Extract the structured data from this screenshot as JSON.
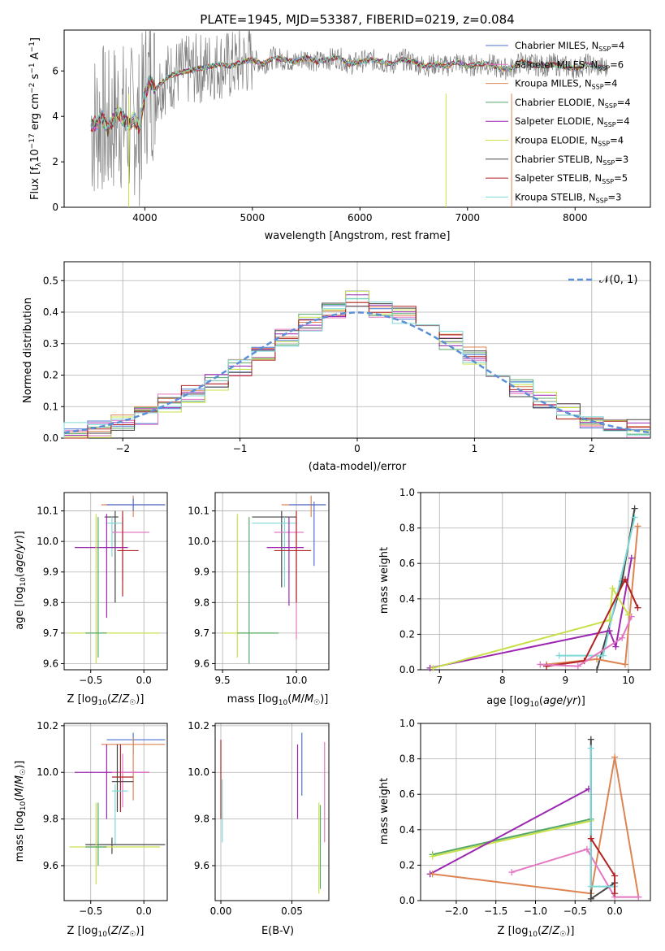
{
  "figure_title": "PLATE=1945, MJD=53387, FIBERID=0219, z=0.084",
  "colors": {
    "chabrier_miles": "#4c72d0",
    "salpeter_miles": "#e377c2",
    "kroupa_miles": "#dd8452",
    "chabrier_elodie": "#55a868",
    "salpeter_elodie": "#9c27b0",
    "kroupa_elodie": "#c8e04a",
    "chabrier_stelib": "#444444",
    "salpeter_stelib": "#b22222",
    "kroupa_stelib": "#7fd8d8",
    "data": "#7f7f7f",
    "gaussian": "#5b8fd8"
  },
  "chart_data": [
    {
      "id": "spectrum",
      "type": "line",
      "xlabel": "wavelength [Angstrom, rest frame]",
      "ylabel": "Flux [f_λ10^-17 erg cm^-2 s^-1 A^-1]",
      "xlim": [
        3250,
        8700
      ],
      "ylim": [
        0,
        7.8
      ],
      "xticks": [
        "4000",
        "5000",
        "6000",
        "7000",
        "8000"
      ],
      "yticks": [
        "0",
        "2",
        "4",
        "6"
      ],
      "grid": false,
      "legend_position": "right",
      "legend": [
        {
          "label": "Chabrier MILES, N",
          "sub": "SSP",
          "suffix": "=4",
          "color": "chabrier_miles"
        },
        {
          "label": "Salpeter MILES, N",
          "sub": "SSP",
          "suffix": "=6",
          "color": "salpeter_miles"
        },
        {
          "label": "Kroupa MILES, N",
          "sub": "SSP",
          "suffix": "=4",
          "color": "kroupa_miles"
        },
        {
          "label": "Chabrier ELODIE, N",
          "sub": "SSP",
          "suffix": "=4",
          "color": "chabrier_elodie"
        },
        {
          "label": "Salpeter ELODIE, N",
          "sub": "SSP",
          "suffix": "=4",
          "color": "salpeter_elodie"
        },
        {
          "label": "Kroupa ELODIE, N",
          "sub": "SSP",
          "suffix": "=4",
          "color": "kroupa_elodie"
        },
        {
          "label": "Chabrier STELIB, N",
          "sub": "SSP",
          "suffix": "=3",
          "color": "chabrier_stelib"
        },
        {
          "label": "Salpeter STELIB, N",
          "sub": "SSP",
          "suffix": "=5",
          "color": "salpeter_stelib"
        },
        {
          "label": "Kroupa STELIB, N",
          "sub": "SSP",
          "suffix": "=3",
          "color": "kroupa_stelib"
        }
      ],
      "data_x": [
        3500,
        3550,
        3600,
        3650,
        3700,
        3750,
        3800,
        3850,
        3900,
        3950,
        4000,
        4050,
        4100,
        4200,
        4300,
        4400,
        4500,
        4600,
        4700,
        4800,
        4900,
        5000,
        5100,
        5200,
        5300,
        5400,
        5500,
        5600,
        5700,
        5800,
        5900,
        6000,
        6100,
        6200,
        6300,
        6400,
        6500,
        6600,
        6700,
        6800,
        6900,
        7000,
        7100,
        7200,
        7300,
        7400,
        7500,
        7600,
        7700,
        7800,
        7900,
        8000,
        8100,
        8200,
        8300
      ],
      "model_y": [
        3.6,
        3.7,
        4.0,
        3.4,
        3.8,
        4.2,
        3.9,
        3.6,
        3.9,
        3.5,
        5.0,
        5.6,
        5.2,
        5.7,
        5.9,
        6.0,
        6.1,
        6.2,
        6.3,
        6.2,
        6.4,
        6.5,
        6.3,
        6.6,
        6.5,
        6.4,
        6.6,
        6.4,
        6.5,
        6.6,
        6.3,
        6.4,
        6.5,
        6.4,
        6.3,
        6.5,
        6.4,
        6.2,
        6.3,
        6.2,
        6.4,
        6.2,
        6.3,
        6.3,
        6.1,
        6.1,
        6.4,
        6.3,
        6.2,
        6.3,
        6.2,
        6.1,
        6.3,
        6.2,
        6.1
      ]
    },
    {
      "id": "residuals",
      "type": "line",
      "xlabel": "(data-model)/error",
      "ylabel": "Normed distribution",
      "xlim": [
        -2.5,
        2.5
      ],
      "ylim": [
        0,
        0.56
      ],
      "xticks": [
        "−2",
        "−1",
        "0",
        "1",
        "2"
      ],
      "yticks": [
        "0.0",
        "0.1",
        "0.2",
        "0.3",
        "0.4",
        "0.5"
      ],
      "grid": true,
      "legend_position": "top-right",
      "legend": [
        {
          "label": "𝒩(0, 1)",
          "color": "gaussian",
          "style": "dashed"
        }
      ],
      "bin_edges": [
        -2.5,
        -2.3,
        -2.1,
        -1.9,
        -1.7,
        -1.5,
        -1.3,
        -1.1,
        -0.9,
        -0.7,
        -0.5,
        -0.3,
        -0.1,
        0.1,
        0.3,
        0.5,
        0.7,
        0.9,
        1.1,
        1.3,
        1.5,
        1.7,
        1.9,
        2.1,
        2.3,
        2.5
      ],
      "hist_counts": [
        0.02,
        0.03,
        0.05,
        0.07,
        0.11,
        0.14,
        0.18,
        0.22,
        0.27,
        0.32,
        0.37,
        0.4,
        0.44,
        0.41,
        0.39,
        0.36,
        0.31,
        0.26,
        0.21,
        0.16,
        0.12,
        0.08,
        0.06,
        0.04,
        0.03
      ]
    },
    {
      "id": "age_vs_Z",
      "type": "scatter",
      "xlabel": "Z [log10(Z/Z☉)]",
      "ylabel": "age [log10(age/yr)]",
      "xlim": [
        -0.75,
        0.22
      ],
      "ylim": [
        9.58,
        10.16
      ],
      "xticks": [
        "−0.5",
        "0.0"
      ],
      "yticks": [
        "9.6",
        "9.7",
        "9.8",
        "9.9",
        "10.0",
        "10.1"
      ],
      "grid": true
    },
    {
      "id": "age_vs_mass",
      "type": "scatter",
      "xlabel": "mass [log10(M/M☉)]",
      "ylabel": "",
      "xlim": [
        9.45,
        10.22
      ],
      "ylim": [
        9.58,
        10.16
      ],
      "xticks": [
        "9.5",
        "10.0"
      ],
      "yticks": [
        "9.6",
        "9.7",
        "9.8",
        "9.9",
        "10.0",
        "10.1"
      ],
      "grid": true
    },
    {
      "id": "massweight_vs_age",
      "type": "line",
      "xlabel": "age [log10(age/yr)]",
      "ylabel": "mass weight",
      "xlim": [
        6.7,
        10.35
      ],
      "ylim": [
        0,
        1.0
      ],
      "xticks": [
        "7",
        "8",
        "9",
        "10"
      ],
      "yticks": [
        "0.0",
        "0.2",
        "0.4",
        "0.6",
        "0.8",
        "1.0"
      ],
      "grid": true,
      "series": [
        {
          "color": "chabrier_stelib",
          "x": [
            9.5,
            9.9,
            10.1
          ],
          "y": [
            0.0,
            0.5,
            0.91
          ]
        },
        {
          "color": "kroupa_stelib",
          "x": [
            8.9,
            9.6,
            10.1
          ],
          "y": [
            0.08,
            0.08,
            0.86
          ]
        },
        {
          "color": "kroupa_miles",
          "x": [
            8.7,
            9.5,
            9.95,
            10.15
          ],
          "y": [
            0.03,
            0.06,
            0.03,
            0.81
          ]
        },
        {
          "color": "salpeter_elodie",
          "x": [
            6.85,
            9.7,
            9.8,
            10.05
          ],
          "y": [
            0.01,
            0.22,
            0.13,
            0.63
          ]
        },
        {
          "color": "kroupa_elodie",
          "x": [
            6.9,
            9.7,
            9.75,
            10.0
          ],
          "y": [
            0.01,
            0.28,
            0.46,
            0.31
          ]
        },
        {
          "color": "salpeter_stelib",
          "x": [
            8.7,
            9.3,
            9.95,
            10.15
          ],
          "y": [
            0.02,
            0.05,
            0.51,
            0.35
          ]
        },
        {
          "color": "salpeter_miles",
          "x": [
            8.6,
            9.2,
            9.9,
            10.05
          ],
          "y": [
            0.03,
            0.02,
            0.18,
            0.3
          ]
        }
      ]
    },
    {
      "id": "mass_vs_Z",
      "type": "scatter",
      "xlabel": "Z [log10(Z/Z☉)]",
      "ylabel": "mass [log10(M/M☉)]",
      "xlim": [
        -0.75,
        0.22
      ],
      "ylim": [
        9.45,
        10.21
      ],
      "xticks": [
        "−0.5",
        "0.0"
      ],
      "yticks": [
        "9.6",
        "9.8",
        "10.0",
        "10.2"
      ],
      "grid": true
    },
    {
      "id": "mass_vs_ebv",
      "type": "scatter",
      "xlabel": "E(B-V)",
      "ylabel": "",
      "xlim": [
        -0.004,
        0.076
      ],
      "ylim": [
        9.45,
        10.21
      ],
      "xticks": [
        "0.00",
        "0.05"
      ],
      "yticks": [
        "9.6",
        "9.8",
        "10.0",
        "10.2"
      ],
      "grid": true
    },
    {
      "id": "massweight_vs_Z",
      "type": "line",
      "xlabel": "Z [log10(Z/Z☉)]",
      "ylabel": "mass weight",
      "xlim": [
        -2.45,
        0.45
      ],
      "ylim": [
        0,
        1.0
      ],
      "xticks": [
        "−2.0",
        "−1.5",
        "−1.0",
        "−0.5",
        "0.0"
      ],
      "yticks": [
        "0.0",
        "0.2",
        "0.4",
        "0.6",
        "0.8",
        "1.0"
      ],
      "grid": true,
      "series": [
        {
          "color": "chabrier_elodie",
          "x": [
            -2.3,
            -0.3
          ],
          "y": [
            0.26,
            0.46
          ]
        },
        {
          "color": "kroupa_elodie",
          "x": [
            -2.3,
            -0.3
          ],
          "y": [
            0.25,
            0.45
          ]
        },
        {
          "color": "salpeter_elodie",
          "x": [
            -2.33,
            -0.33
          ],
          "y": [
            0.15,
            0.63
          ]
        },
        {
          "color": "kroupa_miles",
          "x": [
            -2.3,
            -0.3,
            0.0,
            0.3
          ],
          "y": [
            0.15,
            0.04,
            0.81,
            0.02
          ]
        },
        {
          "color": "salpeter_miles",
          "x": [
            -1.3,
            -0.35,
            0.0,
            0.3
          ],
          "y": [
            0.16,
            0.29,
            0.02,
            0.02
          ]
        },
        {
          "color": "chabrier_stelib",
          "x": [
            -0.3,
            -0.3,
            0.0
          ],
          "y": [
            0.91,
            0.01,
            0.1
          ]
        },
        {
          "color": "kroupa_stelib",
          "x": [
            -0.3,
            -0.3,
            0.0
          ],
          "y": [
            0.86,
            0.08,
            0.08
          ]
        },
        {
          "color": "salpeter_stelib",
          "x": [
            -0.3,
            0.0,
            0.0
          ],
          "y": [
            0.35,
            0.14,
            0.04
          ]
        }
      ]
    }
  ]
}
